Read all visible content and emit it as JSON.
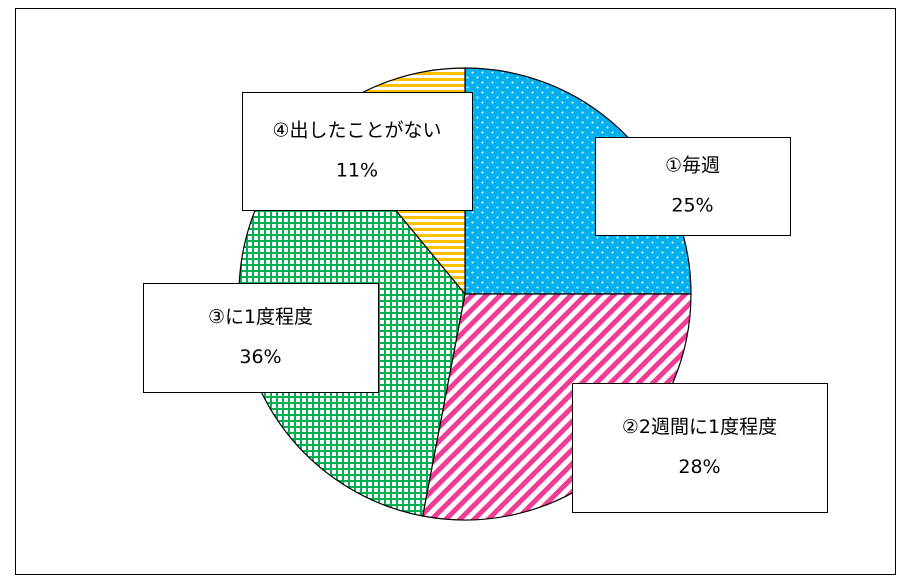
{
  "chart_data": {
    "type": "pie",
    "categories": [
      "①毎週",
      "②2週間に1度程度",
      "③に1度程度",
      "④出したことがない"
    ],
    "values": [
      25,
      28,
      36,
      11
    ],
    "value_labels": [
      "25%",
      "28%",
      "36%",
      "11%"
    ],
    "colors": [
      "#00b0f0",
      "#f03c96",
      "#00b050",
      "#ffc000"
    ],
    "patterns": [
      "dots",
      "diagonal",
      "grid",
      "horizontal"
    ]
  }
}
